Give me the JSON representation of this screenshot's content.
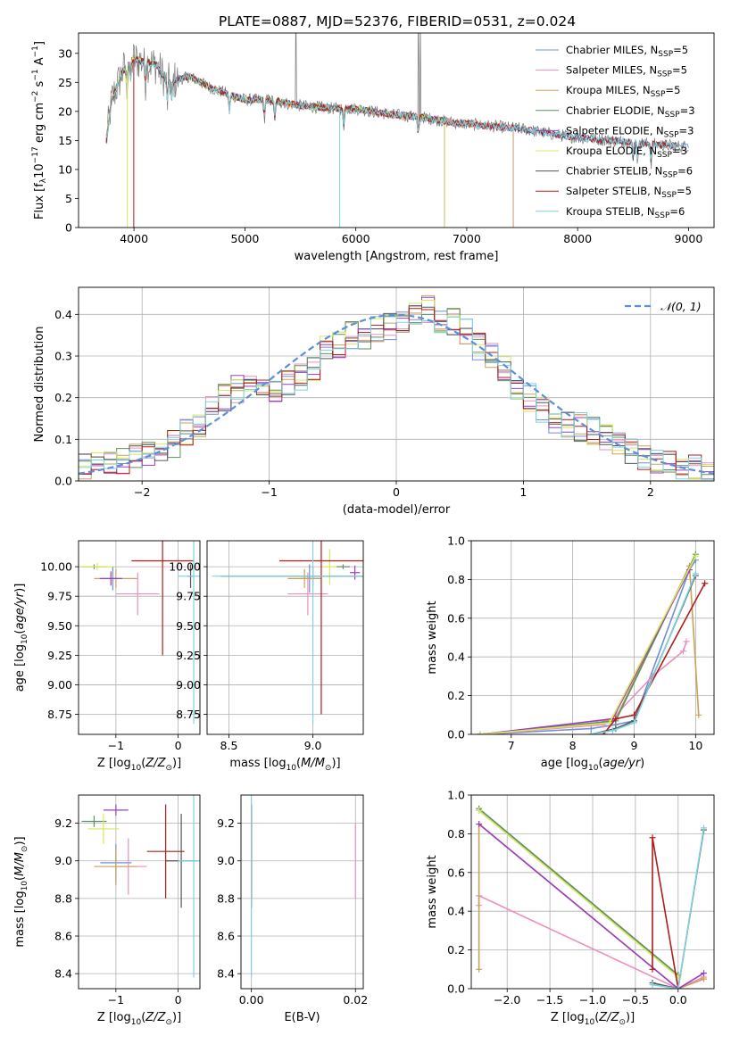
{
  "figure": {
    "title": "PLATE=0887, MJD=52376, FIBERID=0531, z=0.024"
  },
  "colors": {
    "Chabrier MILES": "#6f8fd8",
    "Salpeter MILES": "#ec8fc0",
    "Kroupa MILES": "#c8a25a",
    "Chabrier ELODIE": "#5e8f5e",
    "Salpeter ELODIE": "#9b3fbf",
    "Kroupa ELODIE": "#d8e85a",
    "Chabrier STELIB": "#555555",
    "Salpeter STELIB": "#b01c1c",
    "Kroupa STELIB": "#7fd3df",
    "normal": "#5b8fd8"
  },
  "chart_data": [
    {
      "id": "spectrum",
      "type": "line",
      "xlabel": "wavelength [Angstrom, rest frame]",
      "ylabel": "Flux [f",
      "xlim": [
        3500,
        9230
      ],
      "ylim": [
        0,
        33.5
      ],
      "xticks": [
        4000,
        5000,
        6000,
        7000,
        8000,
        9000
      ],
      "yticks": [
        0,
        5,
        10,
        15,
        20,
        25,
        30
      ],
      "grid": false,
      "legend_position": "top-right",
      "legend": [
        {
          "model": "Chabrier MILES",
          "n": "5"
        },
        {
          "model": "Salpeter MILES",
          "n": "5"
        },
        {
          "model": "Kroupa MILES",
          "n": "5"
        },
        {
          "model": "Chabrier ELODIE",
          "n": "3"
        },
        {
          "model": "Salpeter ELODIE",
          "n": "3"
        },
        {
          "model": "Kroupa ELODIE",
          "n": "3"
        },
        {
          "model": "Chabrier STELIB",
          "n": "6"
        },
        {
          "model": "Salpeter STELIB",
          "n": "5"
        },
        {
          "model": "Kroupa STELIB",
          "n": "6"
        }
      ],
      "continuum": {
        "x": [
          3750,
          3800,
          3900,
          4000,
          4100,
          4200,
          4300,
          4500,
          4700,
          5000,
          5200,
          5500,
          5800,
          6000,
          6300,
          6600,
          6900,
          7200,
          7500,
          7800,
          8000,
          8300,
          8600,
          8900
        ],
        "y": [
          15,
          22,
          27,
          29,
          28.5,
          28,
          25,
          26,
          24,
          22,
          22,
          21,
          20.5,
          20.5,
          19.5,
          19,
          18,
          17.5,
          17,
          16,
          15.5,
          15,
          14.5,
          14
        ]
      }
    },
    {
      "id": "residuals",
      "type": "histogram",
      "xlabel": "(data-model)/error",
      "ylabel": "Normed distribution",
      "xlim": [
        -2.5,
        2.5
      ],
      "ylim": [
        0,
        0.465
      ],
      "xticks": [
        -2,
        -1,
        0,
        1,
        2
      ],
      "yticks": [
        0.0,
        0.1,
        0.2,
        0.3,
        0.4
      ],
      "grid": true,
      "legend_position": "top-right",
      "normal_label": "𝒩(0, 1)",
      "bins": {
        "start": -2.5,
        "width": 0.1,
        "count": 50
      },
      "base_values": [
        0.032,
        0.035,
        0.04,
        0.05,
        0.06,
        0.07,
        0.08,
        0.09,
        0.12,
        0.14,
        0.17,
        0.2,
        0.22,
        0.23,
        0.22,
        0.22,
        0.23,
        0.25,
        0.27,
        0.32,
        0.33,
        0.35,
        0.35,
        0.36,
        0.37,
        0.38,
        0.4,
        0.41,
        0.39,
        0.38,
        0.36,
        0.32,
        0.3,
        0.27,
        0.23,
        0.2,
        0.17,
        0.15,
        0.14,
        0.13,
        0.12,
        0.1,
        0.09,
        0.07,
        0.06,
        0.05,
        0.04,
        0.035,
        0.03,
        0.02
      ]
    },
    {
      "id": "age-vs-Z",
      "type": "errorbar",
      "xlabel": "Z [log",
      "ylabel": "age  [log",
      "xlim": [
        -1.6,
        0.35
      ],
      "ylim": [
        8.58,
        10.22
      ],
      "xticks": [
        -1,
        0
      ],
      "yticks": [
        8.75,
        9.0,
        9.25,
        9.5,
        9.75,
        10.0
      ],
      "grid": true,
      "points": [
        {
          "model": "Chabrier MILES",
          "x": -1.05,
          "xerr": 0.12,
          "y": 9.9,
          "yerr": 0.1
        },
        {
          "model": "Salpeter MILES",
          "x": -0.65,
          "xerr": 0.35,
          "y": 9.77,
          "yerr": 0.18
        },
        {
          "model": "Kroupa MILES",
          "x": -1.0,
          "xerr": 0.35,
          "y": 9.9,
          "yerr": 0.08
        },
        {
          "model": "Chabrier ELODIE",
          "x": -1.35,
          "xerr": 0.2,
          "y": 10.0,
          "yerr": 0.02
        },
        {
          "model": "Salpeter ELODIE",
          "x": -1.08,
          "xerr": 0.18,
          "y": 9.9,
          "yerr": 0.06
        },
        {
          "model": "Kroupa ELODIE",
          "x": -1.3,
          "xerr": 0.25,
          "y": 10.0,
          "yerr": 0.03
        },
        {
          "model": "Chabrier STELIB",
          "x": 0.2,
          "xerr": 0.05,
          "y": 9.92,
          "yerr": 0.1
        },
        {
          "model": "Salpeter STELIB",
          "x": -0.25,
          "xerr": 0.5,
          "y": 10.05,
          "yerr": 0.8
        },
        {
          "model": "Kroupa STELIB",
          "x": 0.25,
          "xerr": 0.25,
          "y": 9.92,
          "yerr": 1.25
        }
      ]
    },
    {
      "id": "age-vs-mass",
      "type": "errorbar",
      "xlabel": "mass [log",
      "ylabel": "",
      "xlim": [
        8.37,
        9.3
      ],
      "ylim": [
        8.58,
        10.22
      ],
      "xticks": [
        8.5,
        9.0
      ],
      "yticks": [
        8.75,
        9.0,
        9.25,
        9.5,
        9.75,
        10.0
      ],
      "grid": true,
      "points": [
        {
          "model": "Chabrier MILES",
          "x": 8.98,
          "xerr": 0.06,
          "y": 9.9,
          "yerr": 0.12
        },
        {
          "model": "Salpeter MILES",
          "x": 8.97,
          "xerr": 0.12,
          "y": 9.77,
          "yerr": 0.18
        },
        {
          "model": "Kroupa MILES",
          "x": 8.95,
          "xerr": 0.1,
          "y": 9.9,
          "yerr": 0.08
        },
        {
          "model": "Chabrier ELODIE",
          "x": 9.18,
          "xerr": 0.04,
          "y": 10.0,
          "yerr": 0.02
        },
        {
          "model": "Salpeter ELODIE",
          "x": 9.25,
          "xerr": 0.03,
          "y": 9.95,
          "yerr": 0.06
        },
        {
          "model": "Kroupa ELODIE",
          "x": 9.1,
          "xerr": 0.04,
          "y": 10.0,
          "yerr": 0.15
        },
        {
          "model": "Chabrier STELIB",
          "x": 9.0,
          "xerr": 0.55,
          "y": 9.92,
          "yerr": 0.08
        },
        {
          "model": "Salpeter STELIB",
          "x": 9.05,
          "xerr": 0.25,
          "y": 10.05,
          "yerr": 1.3
        },
        {
          "model": "Kroupa STELIB",
          "x": 9.0,
          "xerr": 0.6,
          "y": 9.92,
          "yerr": 1.25
        }
      ]
    },
    {
      "id": "massweight-vs-age",
      "type": "line",
      "xlabel": "age  [log",
      "ylabel": "mass weight",
      "xlim": [
        6.35,
        10.3
      ],
      "ylim": [
        0,
        1.0
      ],
      "xticks": [
        7,
        8,
        9,
        10
      ],
      "yticks": [
        0.0,
        0.2,
        0.4,
        0.6,
        0.8,
        1.0
      ],
      "grid": true,
      "series": [
        {
          "model": "Chabrier MILES",
          "x": [
            6.5,
            8.3,
            8.7,
            9.0,
            9.9,
            10.0
          ],
          "y": [
            0.0,
            0.03,
            0.05,
            0.07,
            0.85,
            0.9
          ]
        },
        {
          "model": "Salpeter MILES",
          "x": [
            6.5,
            8.5,
            8.7,
            9.3,
            9.8,
            9.85
          ],
          "y": [
            0.0,
            0.05,
            0.1,
            0.3,
            0.43,
            0.48
          ]
        },
        {
          "model": "Kroupa MILES",
          "x": [
            6.5,
            8.4,
            8.7,
            9.9,
            10.05
          ],
          "y": [
            0.0,
            0.06,
            0.08,
            0.87,
            0.1
          ]
        },
        {
          "model": "Chabrier ELODIE",
          "x": [
            6.5,
            8.7,
            10.0
          ],
          "y": [
            0.0,
            0.07,
            0.93
          ]
        },
        {
          "model": "Salpeter ELODIE",
          "x": [
            6.5,
            8.65,
            9.9
          ],
          "y": [
            0.0,
            0.08,
            0.85
          ]
        },
        {
          "model": "Kroupa ELODIE",
          "x": [
            6.5,
            8.6,
            10.0
          ],
          "y": [
            0.0,
            0.06,
            0.92
          ]
        },
        {
          "model": "Chabrier STELIB",
          "x": [
            8.3,
            8.7,
            9.0,
            10.0
          ],
          "y": [
            0.0,
            0.03,
            0.07,
            0.82
          ]
        },
        {
          "model": "Salpeter STELIB",
          "x": [
            8.5,
            8.7,
            9.0,
            10.15
          ],
          "y": [
            0.0,
            0.08,
            0.1,
            0.78
          ]
        },
        {
          "model": "Kroupa STELIB",
          "x": [
            8.3,
            8.65,
            9.0,
            10.0
          ],
          "y": [
            0.0,
            0.02,
            0.06,
            0.83
          ]
        }
      ]
    },
    {
      "id": "mass-vs-Z",
      "type": "errorbar",
      "xlabel": "Z [log",
      "ylabel": "mass [log",
      "xlim": [
        -1.6,
        0.35
      ],
      "ylim": [
        8.32,
        9.35
      ],
      "xticks": [
        -1,
        0
      ],
      "yticks": [
        8.4,
        8.6,
        8.8,
        9.0,
        9.2
      ],
      "grid": true,
      "points": [
        {
          "model": "Chabrier MILES",
          "x": -1.0,
          "xerr": 0.25,
          "y": 8.99,
          "yerr": 0.1
        },
        {
          "model": "Salpeter MILES",
          "x": -0.8,
          "xerr": 0.3,
          "y": 8.97,
          "yerr": 0.15
        },
        {
          "model": "Kroupa MILES",
          "x": -1.0,
          "xerr": 0.35,
          "y": 8.97,
          "yerr": 0.1
        },
        {
          "model": "Chabrier ELODIE",
          "x": -1.35,
          "xerr": 0.2,
          "y": 9.21,
          "yerr": 0.03
        },
        {
          "model": "Salpeter ELODIE",
          "x": -1.0,
          "xerr": 0.2,
          "y": 9.27,
          "yerr": 0.03
        },
        {
          "model": "Kroupa ELODIE",
          "x": -1.2,
          "xerr": 0.25,
          "y": 9.17,
          "yerr": 0.08
        },
        {
          "model": "Chabrier STELIB",
          "x": 0.05,
          "xerr": 0.25,
          "y": 9.0,
          "yerr": 0.25
        },
        {
          "model": "Salpeter STELIB",
          "x": -0.2,
          "xerr": 0.3,
          "y": 9.05,
          "yerr": 0.25
        },
        {
          "model": "Kroupa STELIB",
          "x": 0.25,
          "xerr": 0.25,
          "y": 9.0,
          "yerr": 0.62
        }
      ]
    },
    {
      "id": "mass-vs-ebv",
      "type": "errorbar",
      "xlabel": "E(B-V)",
      "ylabel": "",
      "xlim": [
        -0.002,
        0.0215
      ],
      "ylim": [
        8.32,
        9.35
      ],
      "xticks": [
        0.0,
        0.02
      ],
      "yticks": [
        8.4,
        8.6,
        8.8,
        9.0,
        9.2
      ],
      "grid": true,
      "points": [
        {
          "model": "Chabrier MILES",
          "x": 0.0,
          "xerr": 0.0,
          "y": 9.0,
          "yerr": 0.1
        },
        {
          "model": "Salpeter MILES",
          "x": 0.02,
          "xerr": 0.0,
          "y": 9.0,
          "yerr": 0.2
        },
        {
          "model": "Kroupa MILES",
          "x": 0.0,
          "xerr": 0.0,
          "y": 8.97,
          "yerr": 0.1
        },
        {
          "model": "Chabrier ELODIE",
          "x": 0.0,
          "xerr": 0.0,
          "y": 9.21,
          "yerr": 0.03
        },
        {
          "model": "Salpeter ELODIE",
          "x": 0.0,
          "xerr": 0.0,
          "y": 9.27,
          "yerr": 0.03
        },
        {
          "model": "Kroupa ELODIE",
          "x": 0.0,
          "xerr": 0.0,
          "y": 9.17,
          "yerr": 0.08
        },
        {
          "model": "Chabrier STELIB",
          "x": 0.0,
          "xerr": 0.0,
          "y": 9.0,
          "yerr": 0.25
        },
        {
          "model": "Salpeter STELIB",
          "x": 0.0,
          "xerr": 0.0,
          "y": 9.05,
          "yerr": 0.25
        },
        {
          "model": "Kroupa STELIB",
          "x": 0.0,
          "xerr": 0.0,
          "y": 9.0,
          "yerr": 0.62
        }
      ]
    },
    {
      "id": "massweight-vs-Z",
      "type": "line",
      "xlabel": "Z [log",
      "ylabel": "mass weight",
      "xlim": [
        -2.42,
        0.42
      ],
      "ylim": [
        0,
        1.0
      ],
      "xticks": [
        -2.0,
        -1.5,
        -1.0,
        -0.5,
        0.0
      ],
      "yticks": [
        0.0,
        0.2,
        0.4,
        0.6,
        0.8,
        1.0
      ],
      "grid": true,
      "series": [
        {
          "model": "Chabrier MILES",
          "x": [
            -2.33,
            0.0
          ],
          "y": [
            0.92,
            0.07
          ]
        },
        {
          "model": "Salpeter MILES",
          "x": [
            -2.33,
            -2.33,
            0.0,
            0.3
          ],
          "y": [
            0.43,
            0.48,
            0.0,
            0.06
          ]
        },
        {
          "model": "Kroupa MILES",
          "x": [
            -2.33,
            -2.33,
            0.0,
            0.3
          ],
          "y": [
            0.1,
            0.85,
            0.0,
            0.05
          ]
        },
        {
          "model": "Chabrier ELODIE",
          "x": [
            -2.33,
            0.0
          ],
          "y": [
            0.93,
            0.07
          ]
        },
        {
          "model": "Salpeter ELODIE",
          "x": [
            -2.33,
            0.0,
            0.3
          ],
          "y": [
            0.85,
            0.0,
            0.08
          ]
        },
        {
          "model": "Kroupa ELODIE",
          "x": [
            -2.33,
            0.0
          ],
          "y": [
            0.92,
            0.06
          ]
        },
        {
          "model": "Chabrier STELIB",
          "x": [
            -0.3,
            0.0,
            0.3
          ],
          "y": [
            0.03,
            0.0,
            0.82
          ]
        },
        {
          "model": "Salpeter STELIB",
          "x": [
            -0.3,
            -0.3,
            0.0
          ],
          "y": [
            0.1,
            0.78,
            0.0
          ]
        },
        {
          "model": "Kroupa STELIB",
          "x": [
            -0.3,
            0.0,
            0.3
          ],
          "y": [
            0.02,
            0.0,
            0.83
          ]
        }
      ]
    }
  ]
}
